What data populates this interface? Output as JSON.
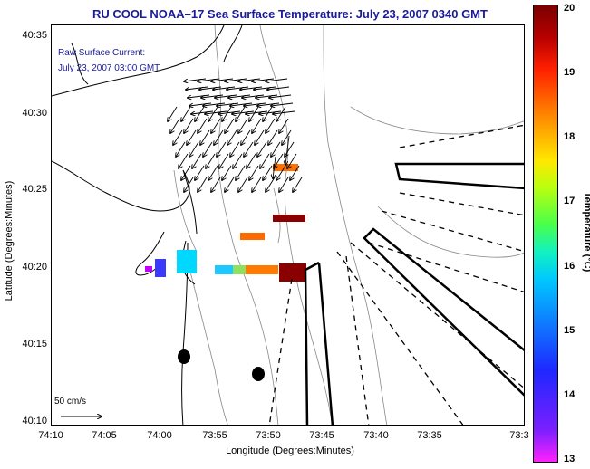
{
  "header": {
    "title": "RU COOL  NOAA–17  Sea Surface Temperature:  July 23, 2007 0340 GMT"
  },
  "annotations": {
    "current_title": "Raw Surface Current:",
    "current_time": "July 23, 2007 03:00 GMT",
    "scale_label": "50 cm/s"
  },
  "axes": {
    "xlabel": "Longitude (Degrees:Minutes)",
    "ylabel": "Latitude (Degrees:Minutes)",
    "xticks": [
      "74:10",
      "74:05",
      "74:00",
      "73:55",
      "73:50",
      "73:45",
      "73:40",
      "73:35",
      "73:3"
    ],
    "yticks": [
      "40:35",
      "40:30",
      "40:25",
      "40:20",
      "40:15",
      "40:10"
    ]
  },
  "colorbar": {
    "label": "Temperature (°C)",
    "ticks": [
      "20",
      "19",
      "18",
      "17",
      "16",
      "15",
      "14",
      "13"
    ],
    "min": 13,
    "max": 20
  },
  "colors": {
    "title": "#1a1a9c",
    "coast": "#000000",
    "isobath": "#888888"
  },
  "chart_data": {
    "type": "heatmap",
    "title": "RU COOL  NOAA–17  Sea Surface Temperature:  July 23, 2007 0340 GMT",
    "xlabel": "Longitude (Degrees:Minutes)",
    "ylabel": "Latitude (Degrees:Minutes)",
    "color_range": [
      13,
      20
    ],
    "sst_patches": [
      {
        "lon": "73:59",
        "lat": "40:20.4",
        "temp": 15.2
      },
      {
        "lon": "74:00",
        "lat": "40:20",
        "temp": 14.2
      },
      {
        "lon": "73:55.5",
        "lat": "40:20",
        "temp": 15.5
      },
      {
        "lon": "73:53",
        "lat": "40:20",
        "temp": 18.3
      },
      {
        "lon": "73:50.5",
        "lat": "40:20",
        "temp": 19.6
      },
      {
        "lon": "73:55",
        "lat": "40:22.5",
        "temp": 18.5
      },
      {
        "lon": "73:50",
        "lat": "40:23.5",
        "temp": 19.7
      },
      {
        "lon": "73:50",
        "lat": "40:26.8",
        "temp": 18.3
      }
    ]
  }
}
